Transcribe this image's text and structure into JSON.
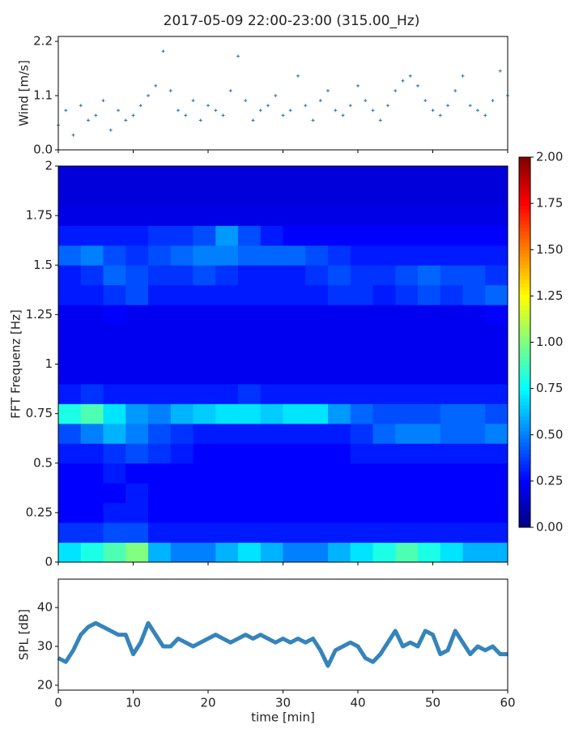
{
  "chart_data": [
    {
      "type": "scatter",
      "title": "2017-05-09 22:00-23:00 (315.00_Hz)",
      "ylabel": "Wind [m/s]",
      "color": "#1f77b4",
      "x": [
        0,
        1,
        2,
        3,
        4,
        5,
        6,
        7,
        8,
        9,
        10,
        11,
        12,
        13,
        14,
        15,
        16,
        17,
        18,
        19,
        20,
        21,
        22,
        23,
        24,
        25,
        26,
        27,
        28,
        29,
        30,
        31,
        32,
        33,
        34,
        35,
        36,
        37,
        38,
        39,
        40,
        41,
        42,
        43,
        44,
        45,
        46,
        47,
        48,
        49,
        50,
        51,
        52,
        53,
        54,
        55,
        56,
        57,
        58,
        59,
        60
      ],
      "values": [
        0.5,
        0.8,
        0.3,
        0.9,
        0.6,
        0.7,
        1.0,
        0.4,
        0.8,
        0.6,
        0.7,
        0.9,
        1.1,
        1.3,
        2.0,
        1.2,
        0.8,
        0.7,
        1.0,
        0.6,
        0.9,
        0.8,
        0.7,
        1.2,
        1.9,
        1.0,
        0.6,
        0.8,
        0.9,
        1.1,
        0.7,
        0.8,
        1.5,
        0.9,
        0.6,
        1.0,
        1.2,
        0.8,
        0.7,
        0.9,
        1.3,
        1.0,
        0.8,
        0.6,
        0.9,
        1.2,
        1.4,
        1.5,
        1.3,
        1.0,
        0.8,
        0.7,
        0.9,
        1.2,
        1.5,
        0.9,
        0.8,
        0.7,
        1.0,
        1.6,
        1.1
      ],
      "xlim": [
        0,
        60
      ],
      "ylim": [
        0,
        2.3
      ],
      "yticks": [
        {
          "value": 0,
          "label": "0.0"
        },
        1.1,
        2.2
      ]
    },
    {
      "type": "heatmap",
      "ylabel": "FFT Frequenz [Hz]",
      "colormap": "jet",
      "xbins": [
        0,
        3,
        6,
        9,
        12,
        15,
        18,
        21,
        24,
        27,
        30,
        33,
        36,
        39,
        42,
        45,
        48,
        51,
        54,
        57,
        60
      ],
      "ybins": [
        0,
        0.1,
        0.2,
        0.3,
        0.4,
        0.5,
        0.6,
        0.7,
        0.8,
        0.9,
        1,
        1.1,
        1.2,
        1.3,
        1.4,
        1.5,
        1.6,
        1.7,
        1.8,
        1.9,
        2
      ],
      "values": [
        [
          0.7,
          0.8,
          0.9,
          1.0,
          0.6,
          0.5,
          0.5,
          0.6,
          0.7,
          0.6,
          0.5,
          0.5,
          0.6,
          0.7,
          0.8,
          0.9,
          0.8,
          0.7,
          0.6,
          0.6
        ],
        [
          0.35,
          0.35,
          0.4,
          0.4,
          0.3,
          0.3,
          0.3,
          0.3,
          0.3,
          0.3,
          0.3,
          0.3,
          0.3,
          0.3,
          0.3,
          0.3,
          0.3,
          0.3,
          0.3,
          0.3
        ],
        [
          0.25,
          0.25,
          0.3,
          0.3,
          0.25,
          0.25,
          0.25,
          0.25,
          0.25,
          0.25,
          0.25,
          0.25,
          0.25,
          0.25,
          0.25,
          0.25,
          0.25,
          0.25,
          0.25,
          0.25
        ],
        [
          0.25,
          0.25,
          0.25,
          0.3,
          0.25,
          0.25,
          0.25,
          0.25,
          0.25,
          0.25,
          0.25,
          0.25,
          0.25,
          0.25,
          0.25,
          0.25,
          0.25,
          0.25,
          0.25,
          0.25
        ],
        [
          0.25,
          0.25,
          0.3,
          0.25,
          0.25,
          0.25,
          0.25,
          0.25,
          0.25,
          0.25,
          0.25,
          0.25,
          0.25,
          0.25,
          0.25,
          0.25,
          0.25,
          0.25,
          0.25,
          0.25
        ],
        [
          0.3,
          0.3,
          0.35,
          0.4,
          0.35,
          0.3,
          0.25,
          0.25,
          0.25,
          0.25,
          0.25,
          0.25,
          0.25,
          0.3,
          0.3,
          0.3,
          0.3,
          0.3,
          0.3,
          0.3
        ],
        [
          0.4,
          0.5,
          0.6,
          0.5,
          0.4,
          0.35,
          0.3,
          0.3,
          0.3,
          0.3,
          0.3,
          0.3,
          0.3,
          0.35,
          0.45,
          0.5,
          0.5,
          0.45,
          0.45,
          0.5
        ],
        [
          0.8,
          0.9,
          0.7,
          0.55,
          0.5,
          0.6,
          0.65,
          0.7,
          0.7,
          0.65,
          0.7,
          0.7,
          0.55,
          0.45,
          0.4,
          0.4,
          0.4,
          0.45,
          0.45,
          0.4
        ],
        [
          0.3,
          0.35,
          0.3,
          0.3,
          0.3,
          0.3,
          0.3,
          0.3,
          0.35,
          0.3,
          0.3,
          0.3,
          0.3,
          0.3,
          0.3,
          0.3,
          0.3,
          0.3,
          0.3,
          0.3
        ],
        [
          0.22,
          0.22,
          0.22,
          0.22,
          0.22,
          0.22,
          0.22,
          0.22,
          0.22,
          0.22,
          0.22,
          0.22,
          0.22,
          0.22,
          0.22,
          0.22,
          0.22,
          0.22,
          0.22,
          0.22
        ],
        [
          0.22,
          0.22,
          0.22,
          0.22,
          0.22,
          0.22,
          0.22,
          0.22,
          0.22,
          0.22,
          0.22,
          0.22,
          0.22,
          0.22,
          0.22,
          0.22,
          0.22,
          0.22,
          0.22,
          0.22
        ],
        [
          0.22,
          0.22,
          0.22,
          0.22,
          0.22,
          0.22,
          0.22,
          0.22,
          0.22,
          0.22,
          0.22,
          0.22,
          0.22,
          0.22,
          0.22,
          0.22,
          0.22,
          0.22,
          0.22,
          0.22
        ],
        [
          0.22,
          0.22,
          0.25,
          0.22,
          0.22,
          0.22,
          0.22,
          0.22,
          0.22,
          0.22,
          0.22,
          0.22,
          0.22,
          0.22,
          0.22,
          0.22,
          0.22,
          0.22,
          0.22,
          0.25
        ],
        [
          0.3,
          0.3,
          0.35,
          0.4,
          0.3,
          0.3,
          0.3,
          0.3,
          0.3,
          0.3,
          0.3,
          0.3,
          0.35,
          0.35,
          0.3,
          0.35,
          0.4,
          0.35,
          0.4,
          0.45
        ],
        [
          0.3,
          0.35,
          0.45,
          0.4,
          0.35,
          0.35,
          0.4,
          0.35,
          0.3,
          0.3,
          0.3,
          0.35,
          0.4,
          0.35,
          0.35,
          0.4,
          0.45,
          0.4,
          0.4,
          0.35
        ],
        [
          0.45,
          0.5,
          0.4,
          0.35,
          0.4,
          0.45,
          0.5,
          0.5,
          0.45,
          0.45,
          0.45,
          0.4,
          0.35,
          0.3,
          0.3,
          0.3,
          0.3,
          0.3,
          0.3,
          0.3
        ],
        [
          0.3,
          0.3,
          0.3,
          0.3,
          0.35,
          0.35,
          0.4,
          0.55,
          0.4,
          0.3,
          0.25,
          0.25,
          0.25,
          0.25,
          0.25,
          0.25,
          0.25,
          0.25,
          0.25,
          0.25
        ],
        [
          0.2,
          0.2,
          0.2,
          0.2,
          0.2,
          0.2,
          0.2,
          0.2,
          0.2,
          0.2,
          0.2,
          0.2,
          0.2,
          0.2,
          0.2,
          0.2,
          0.2,
          0.2,
          0.2,
          0.2
        ],
        [
          0.18,
          0.18,
          0.18,
          0.18,
          0.18,
          0.18,
          0.18,
          0.18,
          0.18,
          0.18,
          0.18,
          0.18,
          0.18,
          0.18,
          0.18,
          0.18,
          0.18,
          0.18,
          0.18,
          0.18
        ],
        [
          0.18,
          0.18,
          0.18,
          0.18,
          0.18,
          0.18,
          0.18,
          0.18,
          0.18,
          0.18,
          0.18,
          0.18,
          0.18,
          0.18,
          0.18,
          0.18,
          0.18,
          0.18,
          0.18,
          0.18
        ]
      ],
      "xlim": [
        0,
        60
      ],
      "ylim": [
        0,
        2
      ],
      "yticks": [
        0,
        0.25,
        0.5,
        0.75,
        1,
        1.25,
        1.5,
        1.75,
        2
      ],
      "clim": [
        0,
        2
      ],
      "cticks": [
        {
          "value": 0,
          "label": "0.00"
        },
        {
          "value": 0.25,
          "label": "0.25"
        },
        {
          "value": 0.5,
          "label": "0.50"
        },
        {
          "value": 0.75,
          "label": "0.75"
        },
        {
          "value": 1,
          "label": "1.00"
        },
        {
          "value": 1.25,
          "label": "1.25"
        },
        {
          "value": 1.5,
          "label": "1.50"
        },
        {
          "value": 1.75,
          "label": "1.75"
        },
        {
          "value": 2,
          "label": "2.00"
        }
      ]
    },
    {
      "type": "line",
      "ylabel": "SPL [dB]",
      "xlabel": "time [min]",
      "color": "#1f77b4",
      "x": [
        0,
        1,
        2,
        3,
        4,
        5,
        6,
        7,
        8,
        9,
        10,
        11,
        12,
        13,
        14,
        15,
        16,
        17,
        18,
        19,
        20,
        21,
        22,
        23,
        24,
        25,
        26,
        27,
        28,
        29,
        30,
        31,
        32,
        33,
        34,
        35,
        36,
        37,
        38,
        39,
        40,
        41,
        42,
        43,
        44,
        45,
        46,
        47,
        48,
        49,
        50,
        51,
        52,
        53,
        54,
        55,
        56,
        57,
        58,
        59,
        60
      ],
      "values": [
        27,
        26,
        29,
        33,
        35,
        36,
        35,
        34,
        33,
        33,
        28,
        31,
        36,
        33,
        30,
        30,
        32,
        31,
        30,
        31,
        32,
        33,
        32,
        31,
        32,
        33,
        32,
        33,
        32,
        31,
        32,
        31,
        32,
        31,
        32,
        29,
        25,
        29,
        30,
        31,
        30,
        27,
        26,
        28,
        31,
        34,
        30,
        31,
        30,
        34,
        33,
        28,
        29,
        34,
        31,
        28,
        30,
        29,
        30,
        28,
        28
      ],
      "xlim": [
        0,
        60
      ],
      "ylim": [
        18.75,
        47.3
      ],
      "xticks": [
        0,
        10,
        20,
        30,
        40,
        50,
        60
      ],
      "yticks": [
        20,
        30,
        40
      ]
    }
  ]
}
